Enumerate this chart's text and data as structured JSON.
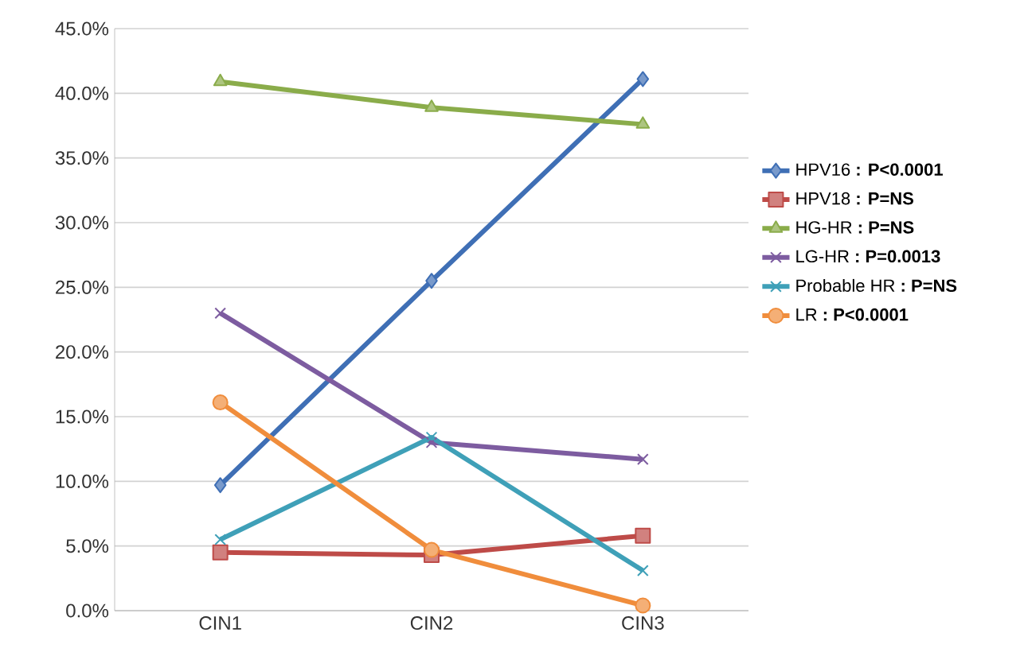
{
  "chart_data": {
    "type": "line",
    "categories": [
      "CIN1",
      "CIN2",
      "CIN3"
    ],
    "ylim": [
      0,
      45
    ],
    "yticks": [
      {
        "value": 0,
        "label": "0.0%"
      },
      {
        "value": 5,
        "label": "5.0%"
      },
      {
        "value": 10,
        "label": "10.0%"
      },
      {
        "value": 15,
        "label": "15.0%"
      },
      {
        "value": 20,
        "label": "20.0%"
      },
      {
        "value": 25,
        "label": "25.0%"
      },
      {
        "value": 30,
        "label": "30.0%"
      },
      {
        "value": 35,
        "label": "35.0%"
      },
      {
        "value": 40,
        "label": "40.0%"
      },
      {
        "value": 45,
        "label": "45.0%"
      }
    ],
    "grid": "y",
    "legend": "right",
    "line_style": "solid",
    "series": [
      {
        "name": "HPV16 **: P<0.0001**",
        "color": "#3f6fb5",
        "marker": "diamond",
        "values": [
          9.7,
          25.5,
          41.1
        ]
      },
      {
        "name": "HPV18 **: P=NS**",
        "color": "#be4b48",
        "marker": "square",
        "values": [
          4.5,
          4.3,
          5.8
        ]
      },
      {
        "name": "HG-HR **: P=NS**",
        "color": "#8aac4a",
        "marker": "triangle",
        "values": [
          40.9,
          38.9,
          37.6
        ]
      },
      {
        "name": "LG-HR **: P=0.0013**",
        "color": "#7d5ca0",
        "marker": "cross",
        "values": [
          23.0,
          13.0,
          11.7
        ]
      },
      {
        "name": "Probable HR **: P=NS**",
        "color": "#3fa0b8",
        "marker": "cross",
        "values": [
          5.5,
          13.4,
          3.1
        ]
      },
      {
        "name": "LR **: P<0.0001**",
        "color": "#f08d3c",
        "marker": "circle",
        "values": [
          16.1,
          4.7,
          0.4
        ]
      }
    ]
  }
}
